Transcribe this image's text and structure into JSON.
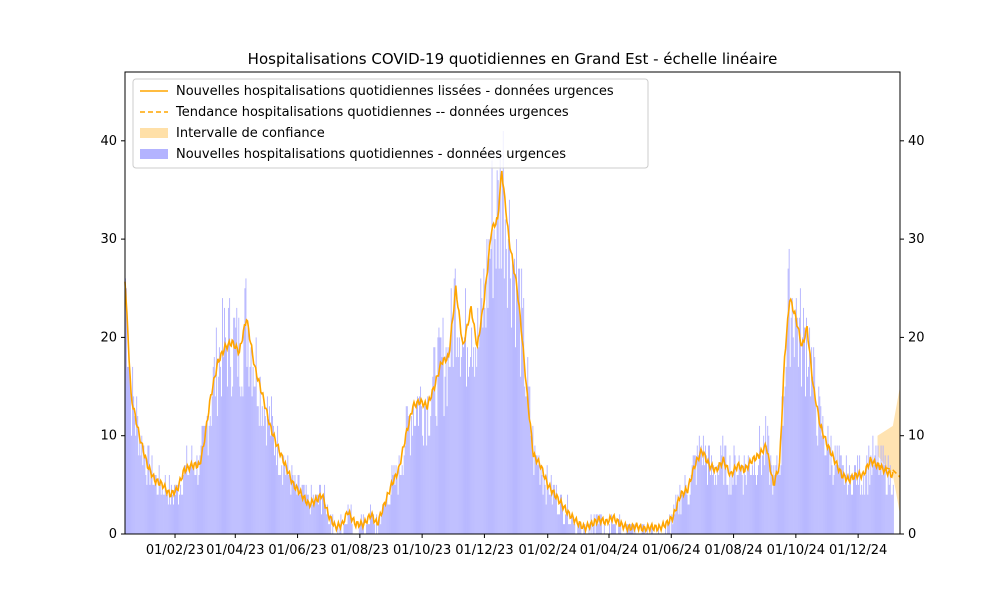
{
  "chart_data": {
    "type": "bar+line",
    "title": "Hospitalisations COVID-19 quotidiennes en Grand Est - échelle linéaire",
    "xlabel": "",
    "ylabel": "",
    "start_date": "2022-12-14",
    "end_date": "2025-01-04",
    "forecast_end": "2025-01-11",
    "ylim": [
      0,
      47
    ],
    "y_ticks": [
      0,
      10,
      20,
      30,
      40
    ],
    "x_ticks": [
      {
        "date": "2023-02-01",
        "label": "01/02/23"
      },
      {
        "date": "2023-04-01",
        "label": "01/04/23"
      },
      {
        "date": "2023-06-01",
        "label": "01/06/23"
      },
      {
        "date": "2023-08-01",
        "label": "01/08/23"
      },
      {
        "date": "2023-10-01",
        "label": "01/10/23"
      },
      {
        "date": "2023-12-01",
        "label": "01/12/23"
      },
      {
        "date": "2024-02-01",
        "label": "01/02/24"
      },
      {
        "date": "2024-04-01",
        "label": "01/04/24"
      },
      {
        "date": "2024-06-01",
        "label": "01/06/24"
      },
      {
        "date": "2024-08-01",
        "label": "01/08/24"
      },
      {
        "date": "2024-10-01",
        "label": "01/10/24"
      },
      {
        "date": "2024-12-01",
        "label": "01/12/24"
      }
    ],
    "smoothed_trend_points": [
      [
        "2022-12-14",
        26
      ],
      [
        "2022-12-20",
        14
      ],
      [
        "2022-12-28",
        10
      ],
      [
        "2023-01-05",
        7
      ],
      [
        "2023-01-12",
        5.5
      ],
      [
        "2023-01-20",
        5
      ],
      [
        "2023-01-27",
        4
      ],
      [
        "2023-02-03",
        4.5
      ],
      [
        "2023-02-10",
        6.5
      ],
      [
        "2023-02-18",
        7
      ],
      [
        "2023-02-25",
        7
      ],
      [
        "2023-03-01",
        9
      ],
      [
        "2023-03-08",
        14
      ],
      [
        "2023-03-15",
        17.5
      ],
      [
        "2023-03-22",
        19
      ],
      [
        "2023-03-29",
        19.5
      ],
      [
        "2023-04-05",
        18.5
      ],
      [
        "2023-04-12",
        22
      ],
      [
        "2023-04-20",
        17
      ],
      [
        "2023-04-28",
        14
      ],
      [
        "2023-05-05",
        11
      ],
      [
        "2023-05-12",
        9
      ],
      [
        "2023-05-20",
        7
      ],
      [
        "2023-05-28",
        5
      ],
      [
        "2023-06-05",
        4
      ],
      [
        "2023-06-12",
        3
      ],
      [
        "2023-06-20",
        3.5
      ],
      [
        "2023-06-25",
        4
      ],
      [
        "2023-07-01",
        2
      ],
      [
        "2023-07-08",
        0.7
      ],
      [
        "2023-07-15",
        1
      ],
      [
        "2023-07-20",
        2.3
      ],
      [
        "2023-07-28",
        1
      ],
      [
        "2023-08-05",
        1
      ],
      [
        "2023-08-12",
        2
      ],
      [
        "2023-08-18",
        1
      ],
      [
        "2023-08-25",
        3
      ],
      [
        "2023-09-01",
        5
      ],
      [
        "2023-09-08",
        6.5
      ],
      [
        "2023-09-15",
        10
      ],
      [
        "2023-09-22",
        13
      ],
      [
        "2023-09-29",
        13.5
      ],
      [
        "2023-10-06",
        13
      ],
      [
        "2023-10-13",
        15
      ],
      [
        "2023-10-20",
        17.5
      ],
      [
        "2023-10-27",
        18
      ],
      [
        "2023-11-03",
        25
      ],
      [
        "2023-11-10",
        19
      ],
      [
        "2023-11-18",
        23
      ],
      [
        "2023-11-24",
        19
      ],
      [
        "2023-12-01",
        24
      ],
      [
        "2023-12-08",
        31
      ],
      [
        "2023-12-14",
        32
      ],
      [
        "2023-12-18",
        37
      ],
      [
        "2023-12-25",
        30
      ],
      [
        "2024-01-02",
        25
      ],
      [
        "2024-01-06",
        21
      ],
      [
        "2024-01-12",
        14
      ],
      [
        "2024-01-18",
        8
      ],
      [
        "2024-01-25",
        7
      ],
      [
        "2024-02-01",
        5
      ],
      [
        "2024-02-08",
        4
      ],
      [
        "2024-02-15",
        3
      ],
      [
        "2024-02-22",
        2
      ],
      [
        "2024-03-01",
        1.2
      ],
      [
        "2024-03-08",
        0.6
      ],
      [
        "2024-03-15",
        1
      ],
      [
        "2024-03-22",
        1.5
      ],
      [
        "2024-03-29",
        1.2
      ],
      [
        "2024-04-05",
        1.7
      ],
      [
        "2024-04-12",
        1
      ],
      [
        "2024-04-20",
        0.6
      ],
      [
        "2024-04-28",
        0.8
      ],
      [
        "2024-05-05",
        0.5
      ],
      [
        "2024-05-12",
        0.7
      ],
      [
        "2024-05-20",
        0.6
      ],
      [
        "2024-05-28",
        1.1
      ],
      [
        "2024-06-03",
        1.8
      ],
      [
        "2024-06-10",
        4
      ],
      [
        "2024-06-17",
        4.5
      ],
      [
        "2024-06-24",
        7
      ],
      [
        "2024-07-01",
        8.5
      ],
      [
        "2024-07-08",
        7
      ],
      [
        "2024-07-15",
        6.5
      ],
      [
        "2024-07-22",
        7.5
      ],
      [
        "2024-07-29",
        6
      ],
      [
        "2024-08-05",
        7
      ],
      [
        "2024-08-12",
        6.5
      ],
      [
        "2024-08-19",
        7.5
      ],
      [
        "2024-08-26",
        8
      ],
      [
        "2024-09-02",
        9
      ],
      [
        "2024-09-09",
        5
      ],
      [
        "2024-09-15",
        7
      ],
      [
        "2024-09-20",
        18
      ],
      [
        "2024-09-25",
        24
      ],
      [
        "2024-10-01",
        22
      ],
      [
        "2024-10-07",
        19
      ],
      [
        "2024-10-12",
        21
      ],
      [
        "2024-10-18",
        15
      ],
      [
        "2024-10-25",
        11
      ],
      [
        "2024-11-01",
        9
      ],
      [
        "2024-11-08",
        7.5
      ],
      [
        "2024-11-15",
        6
      ],
      [
        "2024-11-22",
        5.5
      ],
      [
        "2024-11-29",
        6
      ],
      [
        "2024-12-06",
        6
      ],
      [
        "2024-12-13",
        7.5
      ],
      [
        "2024-12-20",
        7
      ],
      [
        "2024-12-27",
        6.5
      ],
      [
        "2025-01-03",
        6
      ]
    ],
    "forecast_points": [
      [
        "2024-12-20",
        7
      ],
      [
        "2025-01-04",
        6.5
      ],
      [
        "2025-01-11",
        5.8
      ]
    ],
    "confidence_interval": {
      "lower": [
        [
          "2024-12-20",
          8
        ],
        [
          "2025-01-04",
          6
        ],
        [
          "2025-01-11",
          2
        ]
      ],
      "upper": [
        [
          "2024-12-20",
          10
        ],
        [
          "2025-01-04",
          11
        ],
        [
          "2025-01-11",
          15
        ]
      ]
    },
    "series": [
      {
        "name": "Nouvelles hospitalisations quotidiennes lissées - données urgences",
        "style": "solid",
        "color": "#ffa500"
      },
      {
        "name": "Tendance hospitalisations quotidiennes -- données urgences",
        "style": "dashed",
        "color": "#ffa500"
      },
      {
        "name": "Intervalle de confiance",
        "style": "fill",
        "color": "#ffe0a8"
      },
      {
        "name": "Nouvelles hospitalisations quotidiennes - données urgences",
        "style": "bar",
        "color": "#b3b3ff"
      }
    ],
    "legend_position": "top-left",
    "grid": false
  }
}
